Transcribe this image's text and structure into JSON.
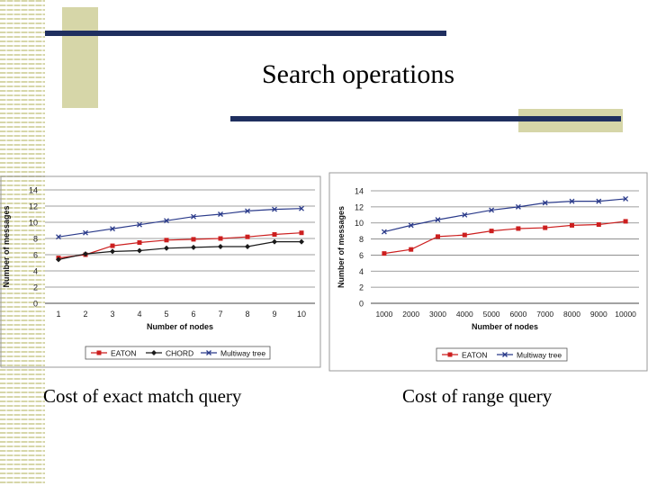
{
  "slide": {
    "title": "Search operations",
    "caption_left": "Cost of exact match query",
    "caption_right": "Cost of range query"
  },
  "colors": {
    "accent_bar": "#1f2f5f",
    "tan": "#d6d6a8",
    "eaton": "#cc1f1f",
    "chord": "#1a1a1a",
    "multiway": "#2a3a8a"
  },
  "chart_data": [
    {
      "type": "line",
      "title": "",
      "xlabel": "Number of nodes",
      "ylabel": "Number of messages",
      "ylim": [
        0,
        14
      ],
      "yticks": [
        "0",
        "2",
        "4",
        "6",
        "8",
        "10",
        "12",
        "14"
      ],
      "categories": [
        "1",
        "2",
        "3",
        "4",
        "5",
        "6",
        "7",
        "8",
        "9",
        "10"
      ],
      "grid": true,
      "legend_position": "bottom",
      "series": [
        {
          "name": "EATON",
          "values": [
            5.6,
            6.0,
            7.1,
            7.5,
            7.8,
            7.9,
            8.0,
            8.2,
            8.5,
            8.7
          ]
        },
        {
          "name": "CHORD",
          "values": [
            5.4,
            6.1,
            6.4,
            6.5,
            6.8,
            6.9,
            7.0,
            7.0,
            7.6,
            7.6
          ]
        },
        {
          "name": "Multiway tree",
          "values": [
            8.2,
            8.7,
            9.2,
            9.7,
            10.2,
            10.7,
            11.0,
            11.4,
            11.6,
            11.7
          ]
        }
      ]
    },
    {
      "type": "line",
      "title": "",
      "xlabel": "Number of nodes",
      "ylabel": "Number of messages",
      "ylim": [
        0,
        14
      ],
      "yticks": [
        "0",
        "2",
        "4",
        "6",
        "8",
        "10",
        "12",
        "14"
      ],
      "categories": [
        "1000",
        "2000",
        "3000",
        "4000",
        "5000",
        "6000",
        "7000",
        "8000",
        "9000",
        "10000"
      ],
      "grid": true,
      "legend_position": "bottom",
      "series": [
        {
          "name": "EATON",
          "values": [
            6.2,
            6.7,
            8.3,
            8.5,
            9.0,
            9.3,
            9.4,
            9.7,
            9.8,
            10.2
          ]
        },
        {
          "name": "Multiway tree",
          "values": [
            8.9,
            9.7,
            10.4,
            11.0,
            11.6,
            12.0,
            12.5,
            12.7,
            12.7,
            13.0
          ]
        }
      ]
    }
  ]
}
